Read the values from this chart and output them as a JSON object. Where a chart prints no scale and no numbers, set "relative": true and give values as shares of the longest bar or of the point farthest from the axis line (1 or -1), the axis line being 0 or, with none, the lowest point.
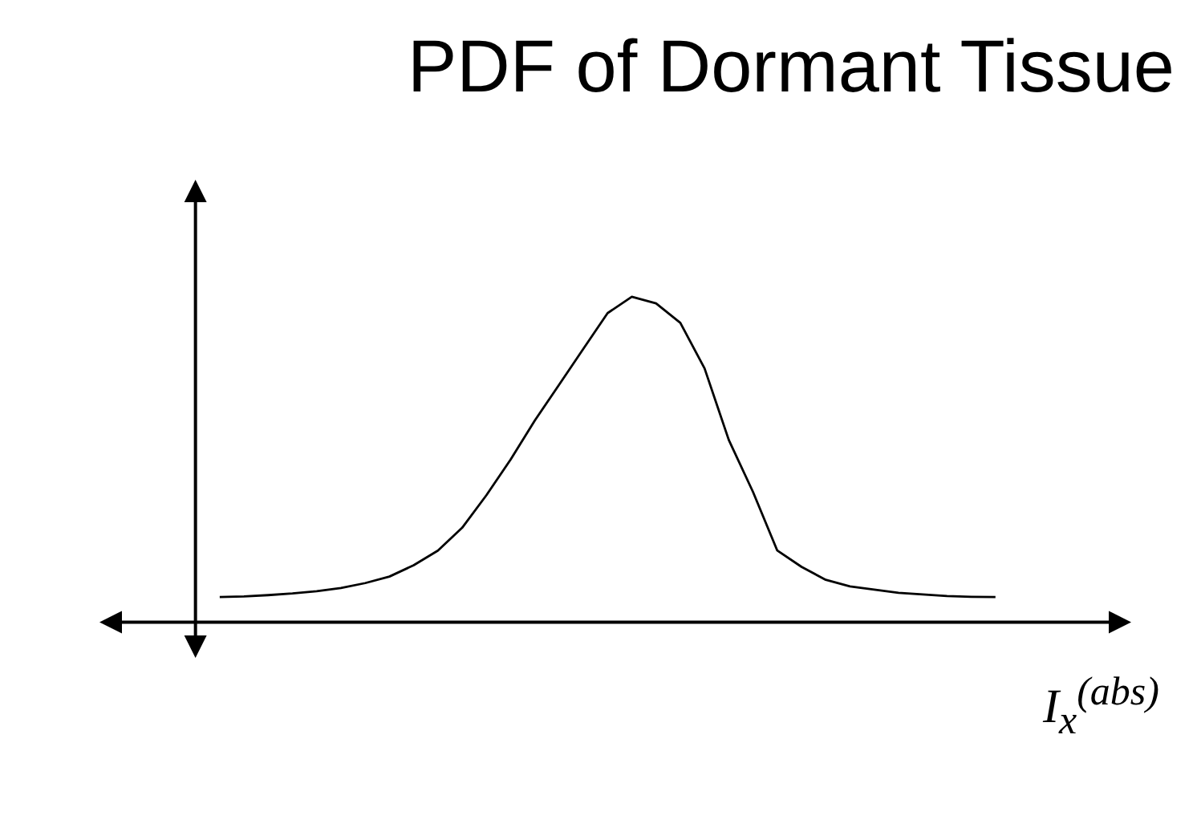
{
  "chart_data": {
    "type": "line",
    "title": "PDF of Dormant Tissue",
    "xlabel": "I$_{x}$$^{(abs)}$",
    "relative": true,
    "legend": false,
    "grid": false,
    "marker": "none",
    "line_style": "solid",
    "categories": [
      null,
      null,
      null,
      null,
      null,
      null,
      null,
      null,
      null,
      null,
      null,
      null,
      null,
      null,
      null,
      null,
      null,
      null,
      null,
      null,
      null,
      null,
      null,
      null,
      null,
      null,
      null,
      null,
      null,
      null,
      null,
      null,
      null
    ],
    "series": [
      {
        "color": "#000000",
        "values": [
          0.077,
          0.079,
          0.083,
          0.088,
          0.095,
          0.105,
          0.12,
          0.14,
          0.175,
          0.22,
          0.29,
          0.39,
          0.5,
          0.62,
          0.73,
          0.84,
          0.95,
          1.0,
          0.98,
          0.92,
          0.78,
          0.56,
          0.4,
          0.22,
          0.17,
          0.13,
          0.11,
          0.1,
          0.09,
          0.085,
          0.08,
          0.078,
          0.077
        ]
      }
    ]
  }
}
